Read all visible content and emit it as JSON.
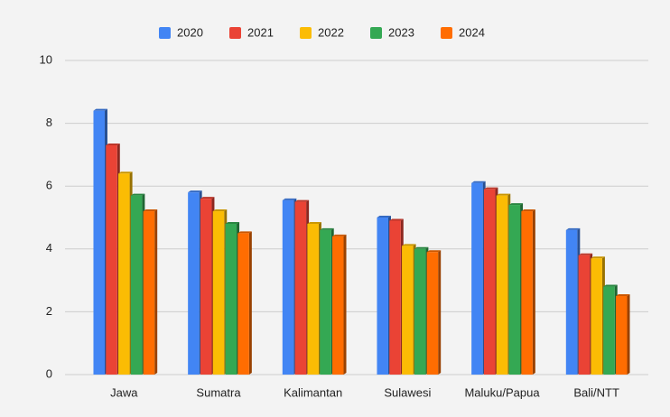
{
  "chart_data": {
    "type": "bar",
    "categories": [
      "Jawa",
      "Sumatra",
      "Kalimantan",
      "Sulawesi",
      "Maluku/Papua",
      "Bali/NTT"
    ],
    "series": [
      {
        "name": "2020",
        "color": "#4285f4",
        "values": [
          8.4,
          5.8,
          5.55,
          5.0,
          6.1,
          4.6
        ]
      },
      {
        "name": "2021",
        "color": "#ea4335",
        "values": [
          7.3,
          5.6,
          5.5,
          4.9,
          5.9,
          3.8
        ]
      },
      {
        "name": "2022",
        "color": "#fbbc04",
        "values": [
          6.4,
          5.2,
          4.8,
          4.1,
          5.7,
          3.7
        ]
      },
      {
        "name": "2023",
        "color": "#34a853",
        "values": [
          5.7,
          4.8,
          4.6,
          4.0,
          5.4,
          2.8
        ]
      },
      {
        "name": "2024",
        "color": "#ff6d01",
        "values": [
          5.2,
          4.5,
          4.4,
          3.9,
          5.2,
          2.5
        ]
      }
    ],
    "ylim": [
      0,
      10
    ],
    "yticks": [
      0,
      2,
      4,
      6,
      8,
      10
    ],
    "grid": true,
    "legend": "top"
  }
}
